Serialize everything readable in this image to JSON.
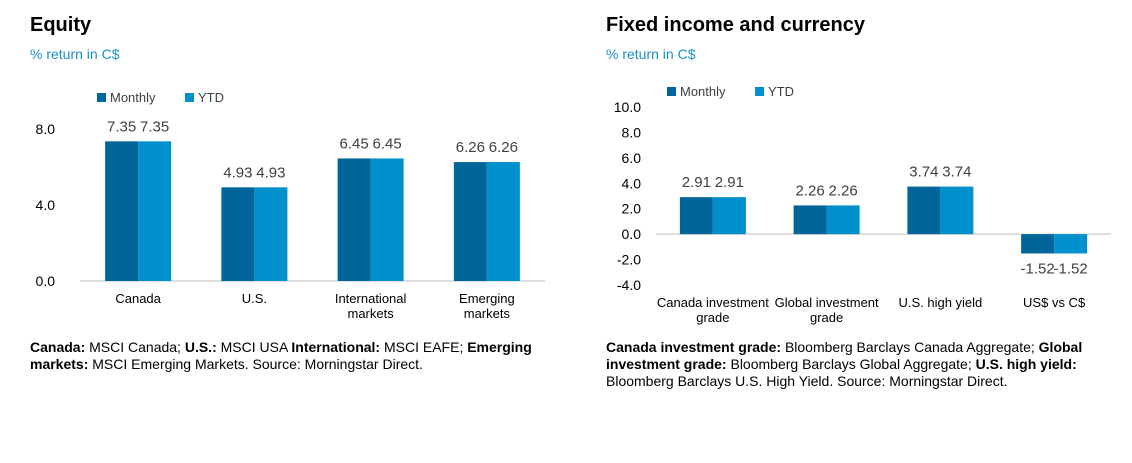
{
  "colors": {
    "monthly": "#006699",
    "ytd": "#0090cc",
    "axis": "#bfbfbf",
    "subtitle": "#1a8fc9"
  },
  "chart_data": [
    {
      "type": "bar",
      "title": "Equity",
      "subtitle": "% return in C$",
      "categories": [
        "Canada",
        "U.S.",
        "International markets",
        "Emerging markets"
      ],
      "series": [
        {
          "name": "Monthly",
          "values": [
            7.35,
            4.93,
            6.45,
            6.26
          ]
        },
        {
          "name": "YTD",
          "values": [
            7.35,
            4.93,
            6.45,
            6.26
          ]
        }
      ],
      "yticks": [
        "8.0",
        "4.0",
        "0.0"
      ],
      "ylim": [
        0,
        8
      ],
      "legend": "top-left",
      "note": [
        {
          "bold": "Canada:",
          "text": " MSCI Canada; "
        },
        {
          "bold": "U.S.:",
          "text": " MSCI USA "
        },
        {
          "bold": "International:",
          "text": " MSCI EAFE; "
        },
        {
          "bold": "Emerging markets:",
          "text": " MSCI Emerging Markets. Source: Morningstar Direct."
        }
      ]
    },
    {
      "type": "bar",
      "title": "Fixed income and currency",
      "subtitle": "% return in C$",
      "categories": [
        "Canada investment grade",
        "Global investment grade",
        "U.S. high yield",
        "US$ vs C$"
      ],
      "series": [
        {
          "name": "Monthly",
          "values": [
            2.91,
            2.26,
            3.74,
            -1.52
          ]
        },
        {
          "name": "YTD",
          "values": [
            2.91,
            2.26,
            3.74,
            -1.52
          ]
        }
      ],
      "yticks": [
        "10.0",
        "8.0",
        "6.0",
        "4.0",
        "2.0",
        "0.0",
        "-2.0",
        "-4.0"
      ],
      "ylim": [
        -4,
        10
      ],
      "legend": "top-left",
      "note": [
        {
          "bold": "Canada investment grade:",
          "text": " Bloomberg Barclays Canada Aggregate; "
        },
        {
          "bold": "Global investment grade:",
          "text": " Bloomberg Barclays Global Aggregate; "
        },
        {
          "bold": "U.S. high yield:",
          "text": " Bloomberg Barclays U.S. High Yield. Source: Morningstar Direct."
        }
      ]
    }
  ]
}
